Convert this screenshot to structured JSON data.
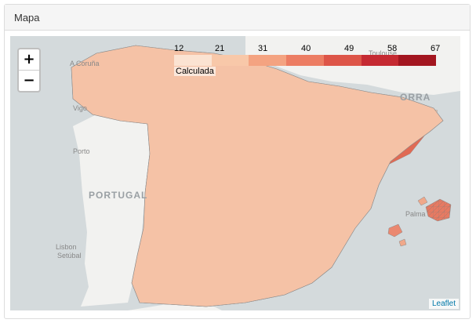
{
  "card": {
    "title": "Mapa"
  },
  "zoom": {
    "in_label": "+",
    "out_label": "−"
  },
  "legend": {
    "title": "Calculada",
    "ticks": [
      "12",
      "21",
      "31",
      "40",
      "49",
      "58",
      "67"
    ],
    "colors": [
      "#fbe3d2",
      "#f8c8a9",
      "#f4a381",
      "#ec7d63",
      "#dd5548",
      "#c52a32",
      "#a31620"
    ]
  },
  "places": {
    "country_portugal": "PORTUGAL",
    "country_andorra": "ORRA",
    "a_coruna": "A Coruña",
    "vigo": "Vigo",
    "porto": "Porto",
    "lisbon": "Lisbon",
    "setubal": "Setúbal",
    "toulouse": "Toulouse",
    "palma": "Palma"
  },
  "attribution": "Leaflet",
  "colors": {
    "sea": "#d4dadc",
    "land": "#f2f2f0",
    "border": "#8a8a8a"
  }
}
